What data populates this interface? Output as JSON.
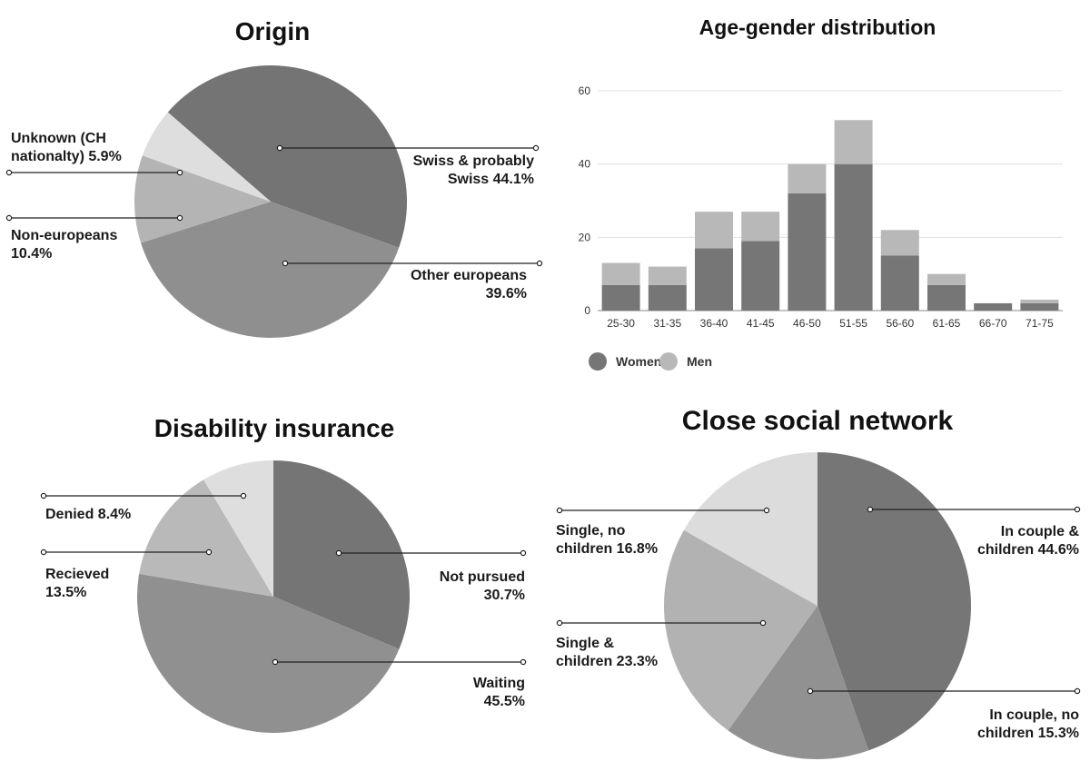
{
  "chart_data": [
    {
      "type": "pie",
      "title": "Origin",
      "slices": [
        {
          "label": [
            "Swiss & probably",
            "Swiss 44.1%"
          ],
          "value": 44.1,
          "color": "#747474"
        },
        {
          "label": [
            "Other europeans",
            "39.6%"
          ],
          "value": 39.6,
          "color": "#8f8f8f"
        },
        {
          "label": [
            "Non-europeans",
            "10.4%"
          ],
          "value": 10.4,
          "color": "#b4b4b4"
        },
        {
          "label": [
            "Unknown (CH",
            "nationalty) 5.9%"
          ],
          "value": 5.9,
          "color": "#dedede"
        }
      ]
    },
    {
      "type": "bar",
      "stacked": true,
      "title": "Age-gender distribution",
      "categories": [
        "25-30",
        "31-35",
        "36-40",
        "41-45",
        "46-50",
        "51-55",
        "56-60",
        "61-65",
        "66-70",
        "71-75"
      ],
      "series": [
        {
          "name": "Women",
          "values": [
            7,
            7,
            17,
            19,
            32,
            40,
            15,
            7,
            2,
            2
          ],
          "color": "#767676"
        },
        {
          "name": "Men",
          "values": [
            6,
            5,
            10,
            8,
            8,
            12,
            7,
            3,
            0,
            1
          ],
          "color": "#b8b8b8"
        }
      ],
      "ylim": [
        0,
        60
      ],
      "yticks": [
        0,
        20,
        40,
        60
      ],
      "grid": true,
      "legend": "bottom-left"
    },
    {
      "type": "pie",
      "title": "Disability insurance",
      "slices": [
        {
          "label": [
            "Not pursued",
            "30.7%"
          ],
          "value": 30.7,
          "color": "#757575"
        },
        {
          "label": [
            "Waiting",
            "45.5%"
          ],
          "value": 45.5,
          "color": "#909090"
        },
        {
          "label": [
            "Recieved",
            "13.5%"
          ],
          "value": 13.5,
          "color": "#b9b9b9"
        },
        {
          "label": [
            "Denied 8.4%"
          ],
          "value": 8.4,
          "color": "#dedede"
        }
      ]
    },
    {
      "type": "pie",
      "title": "Close social network",
      "slices": [
        {
          "label": [
            "In couple &",
            "children 44.6%"
          ],
          "value": 44.6,
          "color": "#767676"
        },
        {
          "label": [
            "In couple, no",
            "children 15.3%"
          ],
          "value": 15.3,
          "color": "#919191"
        },
        {
          "label": [
            "Single &",
            "children 23.3%"
          ],
          "value": 23.3,
          "color": "#b2b2b2"
        },
        {
          "label": [
            "Single, no",
            "children 16.8%"
          ],
          "value": 16.8,
          "color": "#dcdcdc"
        }
      ]
    }
  ]
}
